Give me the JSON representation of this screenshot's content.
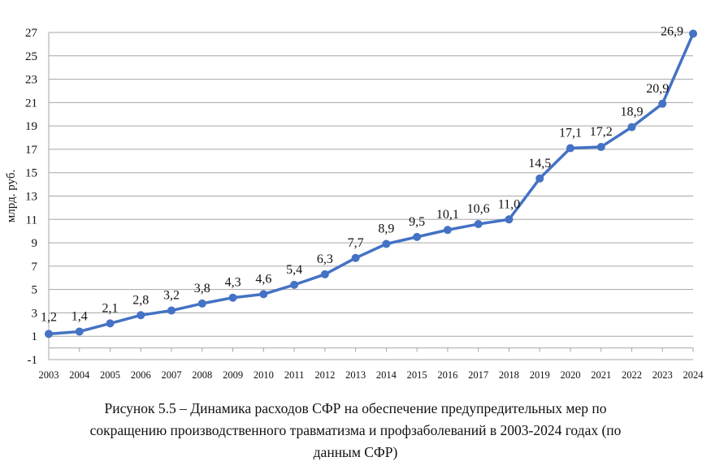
{
  "chart_data": {
    "type": "line",
    "title": "",
    "xlabel": "",
    "ylabel": "млрд. руб.",
    "x": [
      "2003",
      "2004",
      "2005",
      "2006",
      "2007",
      "2008",
      "2009",
      "2010",
      "2011",
      "2012",
      "2013",
      "2014",
      "2015",
      "2016",
      "2017",
      "2018",
      "2019",
      "2020",
      "2021",
      "2022",
      "2023",
      "2024"
    ],
    "series": [
      {
        "values": [
          1.2,
          1.4,
          2.1,
          2.8,
          3.2,
          3.8,
          4.3,
          4.6,
          5.4,
          6.3,
          7.7,
          8.9,
          9.5,
          10.1,
          10.6,
          11.0,
          14.5,
          17.1,
          17.2,
          18.9,
          20.9,
          26.9
        ],
        "labels": [
          "1,2",
          "1,4",
          "2,1",
          "2,8",
          "3,2",
          "3,8",
          "4,3",
          "4,6",
          "5,4",
          "6,3",
          "7,7",
          "8,9",
          "9,5",
          "10,1",
          "10,6",
          "11,0",
          "14,5",
          "17,1",
          "17,2",
          "18,9",
          "20,9",
          "26,9"
        ],
        "color": "#4472C4"
      }
    ],
    "ylim": [
      -1,
      27
    ],
    "yticks": [
      "-1",
      "1",
      "3",
      "5",
      "7",
      "9",
      "11",
      "13",
      "15",
      "17",
      "19",
      "21",
      "23",
      "25",
      "27"
    ],
    "grid": true,
    "legend": "none"
  },
  "caption": {
    "line1": "Рисунок 5.5 – Динамика расходов СФР на обеспечение предупредительных мер по",
    "line2": "сокращению производственного травматизма и профзаболеваний в 2003-2024 годах (по",
    "line3": "данным СФР)"
  }
}
